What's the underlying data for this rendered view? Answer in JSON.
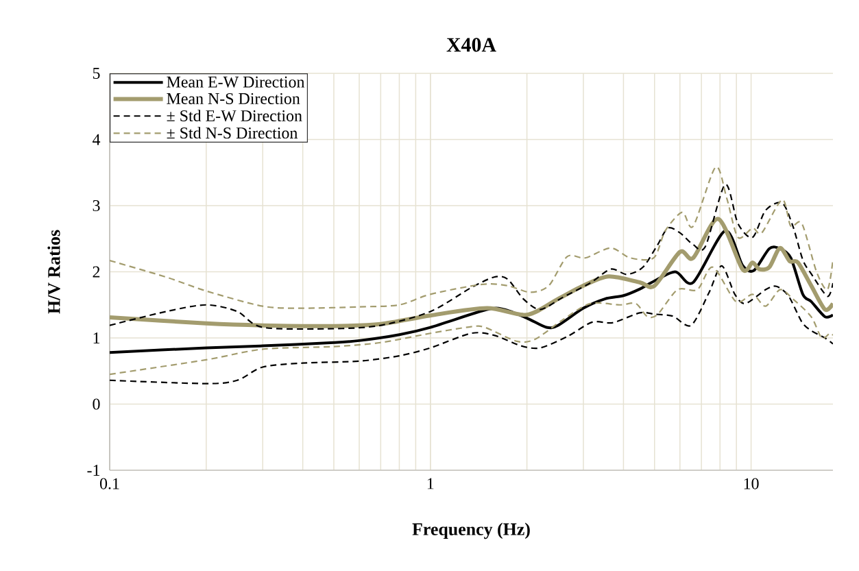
{
  "chart_data": {
    "type": "line",
    "title": "X40A",
    "xlabel": "Frequency (Hz)",
    "ylabel": "H/V Ratios",
    "log": "x",
    "xlim": [
      0.1,
      18
    ],
    "xticks": [
      0.1,
      1,
      10
    ],
    "ylim": [
      -1,
      5
    ],
    "yticks": [
      -1,
      0,
      1,
      2,
      3,
      4,
      5
    ],
    "grid": true,
    "legend": "top left",
    "marker": "none",
    "line_style": "solid",
    "series": [
      {
        "name": "Mean E-W Direction",
        "color": "#000000",
        "x": [
          0.1,
          0.2,
          0.3,
          0.5,
          0.6,
          0.8,
          1,
          1.5,
          1.7,
          2,
          2.3,
          2.5,
          3,
          3.5,
          4,
          4.5,
          4.9,
          5.8,
          6.6,
          8.3,
          9.4,
          10.2,
          11.4,
          12.3,
          13.3,
          14.5,
          15.4,
          17,
          18
        ],
        "values": [
          0.78,
          0.85,
          0.88,
          0.93,
          0.96,
          1.05,
          1.16,
          1.43,
          1.43,
          1.3,
          1.16,
          1.19,
          1.45,
          1.59,
          1.64,
          1.74,
          1.84,
          2.0,
          1.84,
          2.62,
          2.1,
          2.02,
          2.35,
          2.35,
          2.21,
          1.66,
          1.55,
          1.32,
          1.35
        ]
      },
      {
        "name": "Mean N-S Direction",
        "color": "#a39c6e",
        "x": [
          0.1,
          0.2,
          0.3,
          0.5,
          0.7,
          1,
          1.5,
          2,
          2.5,
          3,
          3.6,
          4.5,
          5,
          6,
          6.6,
          7.9,
          9.4,
          10.1,
          10.6,
          11.4,
          12.3,
          13.2,
          14,
          15.4,
          17,
          18
        ],
        "values": [
          1.31,
          1.22,
          1.19,
          1.18,
          1.21,
          1.34,
          1.45,
          1.35,
          1.59,
          1.79,
          1.93,
          1.84,
          1.79,
          2.3,
          2.21,
          2.8,
          2.04,
          2.14,
          2.04,
          2.07,
          2.36,
          2.16,
          2.14,
          1.79,
          1.43,
          1.52
        ]
      },
      {
        "name": "± Std E-W Direction",
        "color": "#000000",
        "line_style": "dashed",
        "x": [
          0.1,
          0.15,
          0.2,
          0.25,
          0.3,
          0.5,
          0.7,
          1,
          1.34,
          1.58,
          1.74,
          1.95,
          2.2,
          2.58,
          3.15,
          3.65,
          4.1,
          4.6,
          5.1,
          5.5,
          6,
          6.6,
          7.2,
          8.3,
          9.1,
          10.1,
          11.1,
          12.5,
          13.5,
          14.5,
          15.4,
          17.3,
          18
        ],
        "values": [
          1.19,
          1.4,
          1.5,
          1.4,
          1.16,
          1.14,
          1.19,
          1.4,
          1.76,
          1.92,
          1.89,
          1.59,
          1.43,
          1.61,
          1.83,
          2.04,
          1.96,
          2.07,
          2.4,
          2.66,
          2.59,
          2.41,
          2.38,
          3.32,
          2.73,
          2.52,
          2.93,
          3.04,
          2.69,
          2.18,
          1.97,
          1.63,
          1.83
        ]
      },
      {
        "color": "#000000",
        "line_style": "dashed",
        "x": [
          0.1,
          0.2,
          0.25,
          0.3,
          0.4,
          0.6,
          0.8,
          1,
          1.34,
          1.58,
          1.92,
          2.2,
          2.67,
          3.2,
          3.7,
          4.5,
          5,
          5.7,
          6.5,
          7.4,
          8.1,
          8.9,
          9.6,
          11.1,
          12,
          13.1,
          14.4,
          15.4,
          17,
          18
        ],
        "values": [
          0.36,
          0.31,
          0.36,
          0.56,
          0.62,
          0.65,
          0.73,
          0.85,
          1.07,
          1.04,
          0.88,
          0.85,
          1.02,
          1.24,
          1.23,
          1.38,
          1.36,
          1.33,
          1.19,
          1.69,
          2.09,
          1.66,
          1.52,
          1.73,
          1.78,
          1.63,
          1.24,
          1.11,
          1.0,
          0.91
        ]
      },
      {
        "name": "± Std N-S Direction",
        "color": "#a39c6e",
        "line_style": "dashed",
        "x": [
          0.1,
          0.15,
          0.2,
          0.3,
          0.4,
          0.6,
          0.8,
          1,
          1.45,
          1.74,
          2.05,
          2.34,
          2.67,
          3.04,
          3.65,
          4.2,
          4.97,
          5.4,
          6.1,
          6.6,
          7.75,
          8.4,
          9.1,
          10.1,
          10.8,
          12.5,
          13.3,
          14.4,
          16,
          17.3,
          18
        ],
        "values": [
          2.17,
          1.92,
          1.71,
          1.48,
          1.45,
          1.47,
          1.5,
          1.66,
          1.81,
          1.79,
          1.69,
          1.79,
          2.23,
          2.21,
          2.36,
          2.21,
          2.21,
          2.62,
          2.9,
          2.69,
          3.58,
          3.11,
          2.52,
          2.66,
          2.59,
          3.09,
          2.69,
          2.73,
          2.0,
          1.73,
          2.18
        ]
      },
      {
        "color": "#a39c6e",
        "line_style": "dashed",
        "x": [
          0.1,
          0.2,
          0.3,
          0.5,
          0.7,
          1,
          1.34,
          1.48,
          1.86,
          2.12,
          2.58,
          3.15,
          3.89,
          4.37,
          4.73,
          5.1,
          5.9,
          6.8,
          7.6,
          8.97,
          10.1,
          11.1,
          12.3,
          13.5,
          15.4,
          16.6,
          17.6,
          18
        ],
        "values": [
          0.45,
          0.67,
          0.83,
          0.87,
          0.93,
          1.07,
          1.17,
          1.16,
          0.95,
          0.98,
          1.27,
          1.52,
          1.5,
          1.52,
          1.33,
          1.35,
          1.73,
          1.73,
          2.07,
          1.55,
          1.66,
          1.48,
          1.73,
          1.59,
          1.32,
          1.0,
          1.07,
          1.04
        ]
      }
    ]
  }
}
